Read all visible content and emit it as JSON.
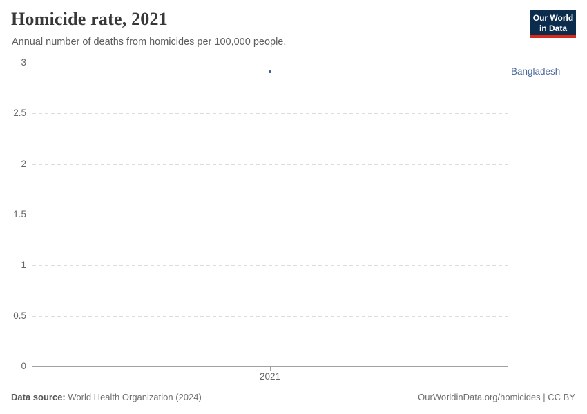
{
  "header": {
    "title": "Homicide rate, 2021",
    "subtitle": "Annual number of deaths from homicides per 100,000 people."
  },
  "logo": {
    "line1": "Our World",
    "line2": "in Data",
    "bg_color": "#0c2c4d",
    "accent_color": "#d8291c"
  },
  "chart_data": {
    "type": "scatter",
    "title": "Homicide rate, 2021",
    "x": [
      2021
    ],
    "x_tick_labels": [
      "2021"
    ],
    "series": [
      {
        "name": "Bangladesh",
        "values": [
          2.91
        ]
      }
    ],
    "xlabel": "",
    "ylabel": "",
    "ylim": [
      0,
      3
    ],
    "yticks": [
      0,
      0.5,
      1,
      1.5,
      2,
      2.5,
      3
    ],
    "grid": "horizontal-dashed",
    "legend_position": "right-of-plot",
    "point_color": "#3d5a8f",
    "label_color": "#4c6a9c"
  },
  "footer": {
    "source_label": "Data source:",
    "source_value": " World Health Organization (2024)",
    "right_text": "OurWorldinData.org/homicides | CC BY"
  }
}
